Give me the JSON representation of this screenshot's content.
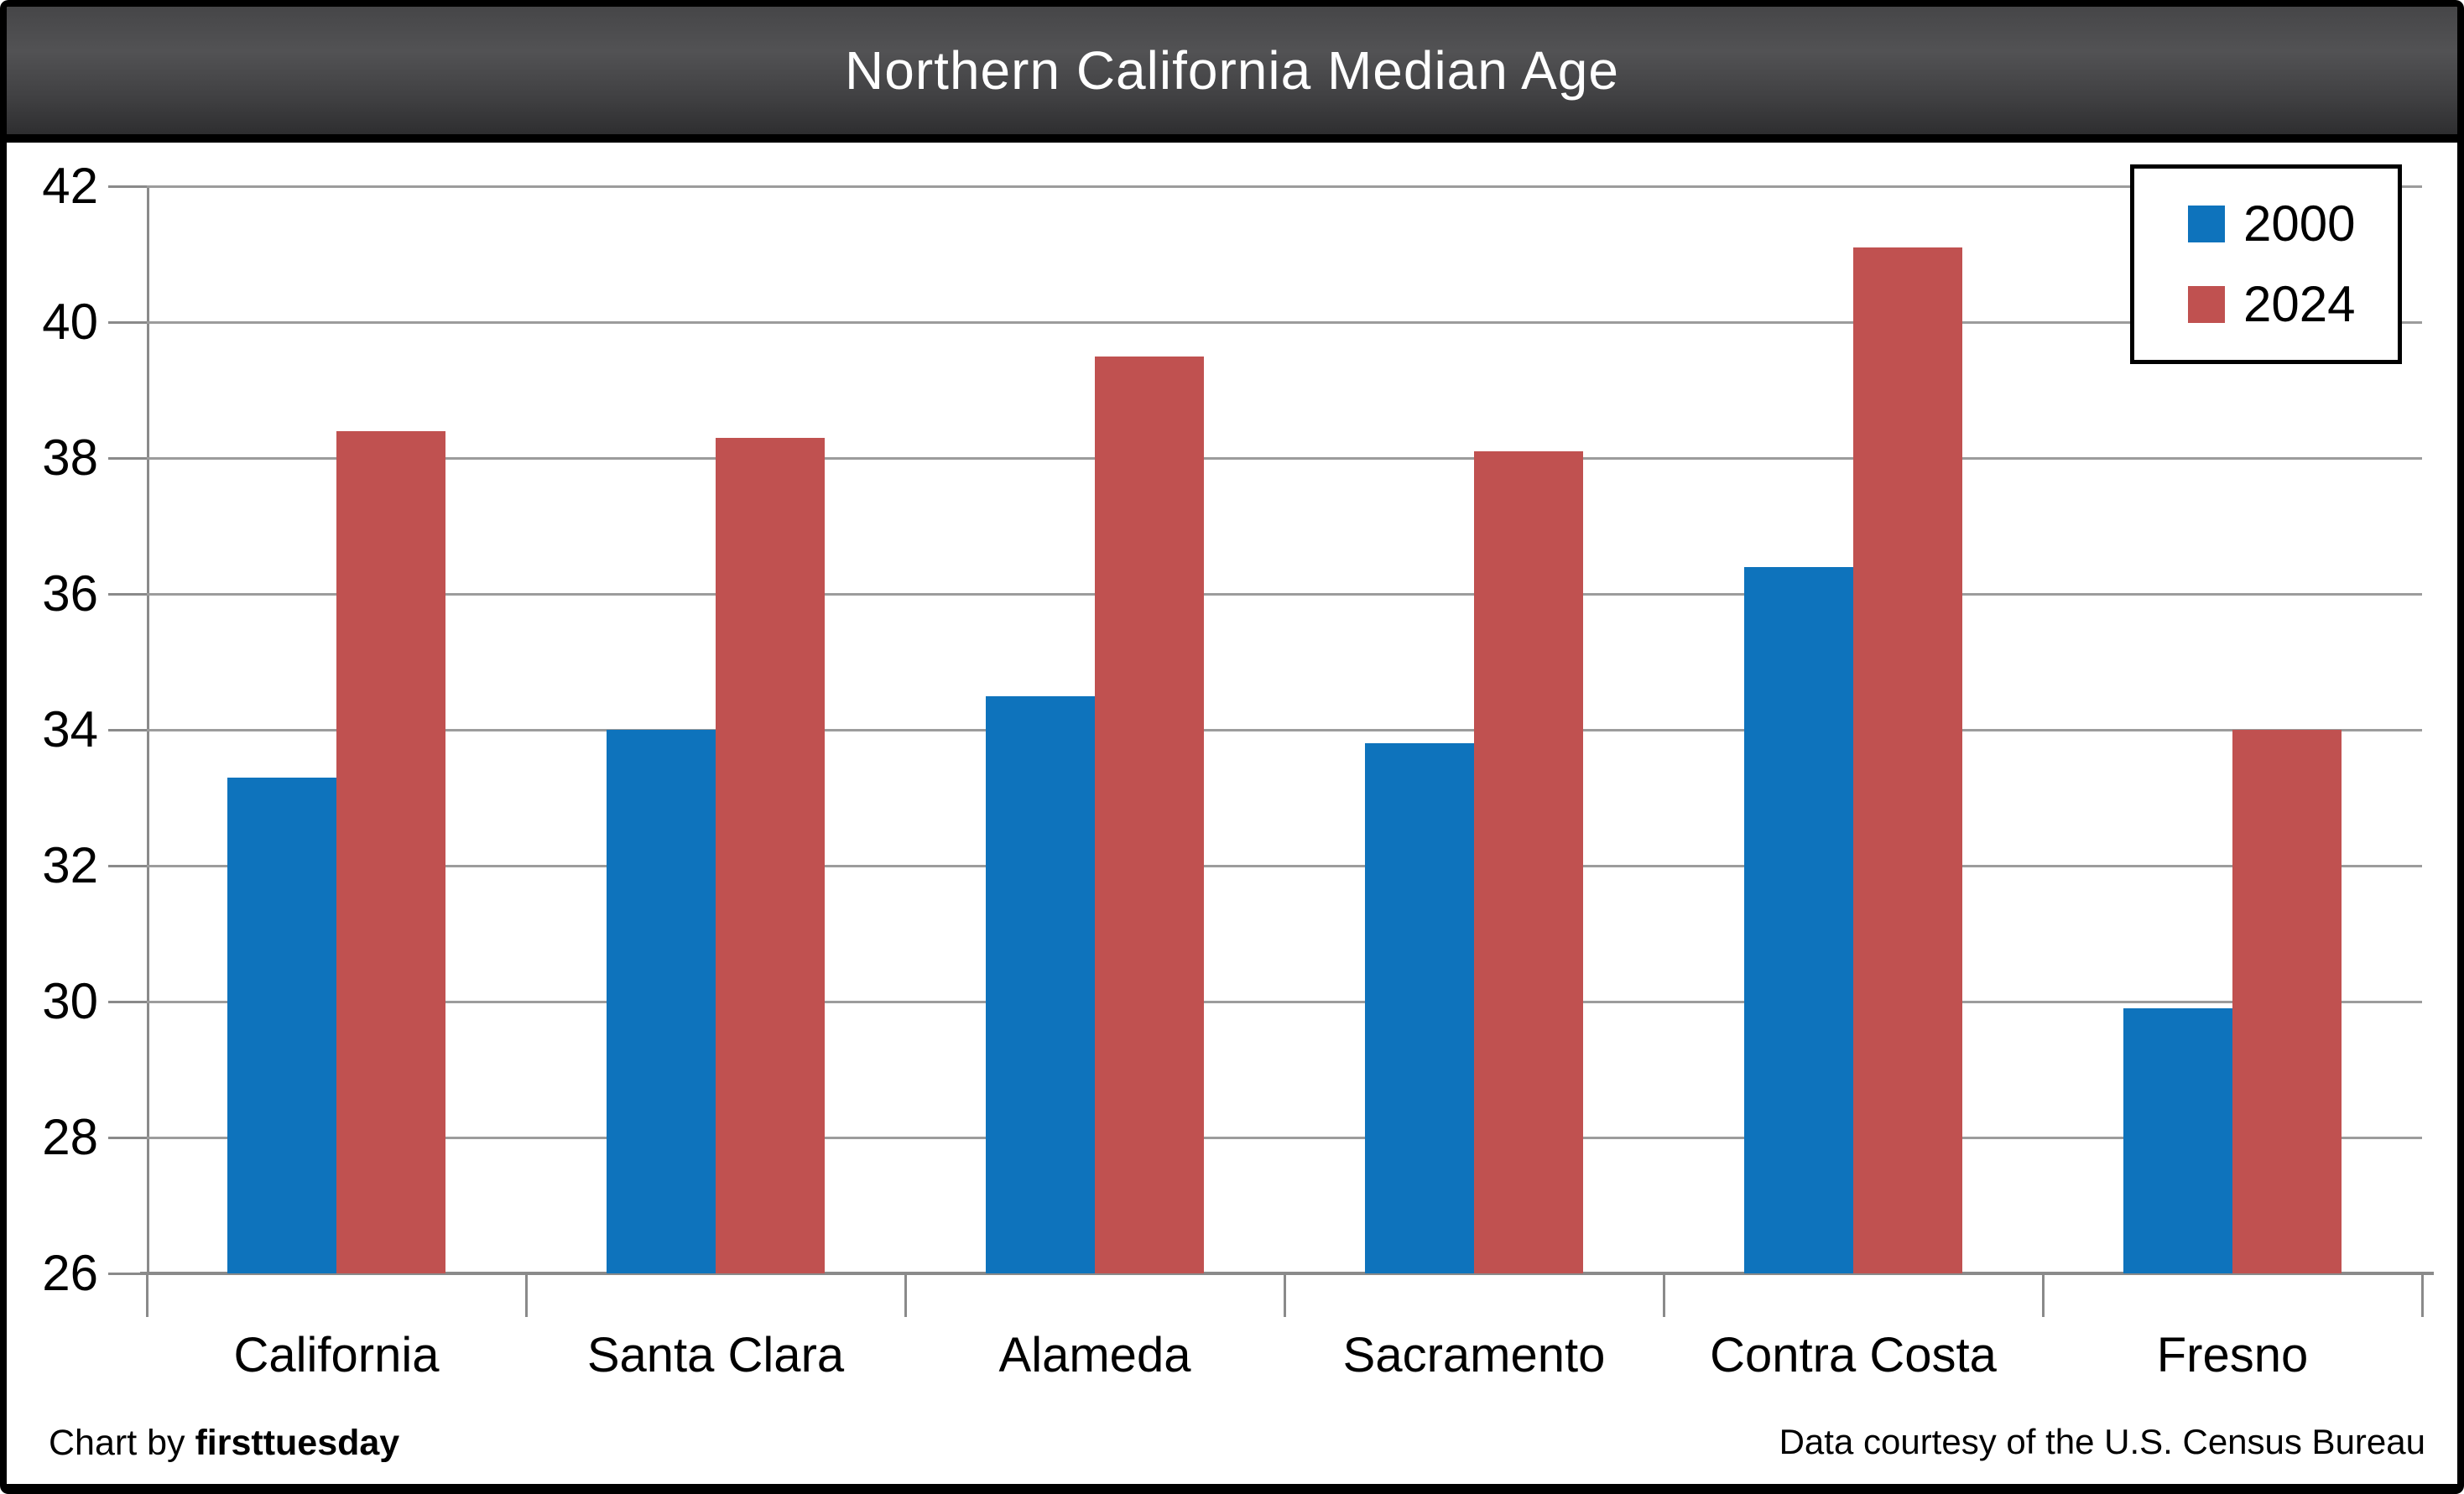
{
  "title": "Northern California Median Age",
  "footer": {
    "credit_prefix": "Chart by ",
    "credit_brand": "firsttuesday",
    "data_source": "Data courtesy of the U.S. Census Bureau"
  },
  "colors": {
    "gridline": "#9c9c9c",
    "axis": "#8a8a8a",
    "title_text": "#ffffff",
    "series_2000": "#0e73bc",
    "series_2024": "#c05150"
  },
  "chart_data": {
    "type": "bar",
    "title": "Northern California Median Age",
    "categories": [
      "California",
      "Santa Clara",
      "Alameda",
      "Sacramento",
      "Contra Costa",
      "Fresno"
    ],
    "series": [
      {
        "name": "2000",
        "color": "#0e73bc",
        "values": [
          33.3,
          34.0,
          34.5,
          33.8,
          36.4,
          29.9
        ]
      },
      {
        "name": "2024",
        "color": "#c05150",
        "values": [
          38.4,
          38.3,
          39.5,
          38.1,
          41.1,
          34.0
        ]
      }
    ],
    "xlabel": "",
    "ylabel": "",
    "ylim": [
      26,
      42
    ],
    "ytick_step": 2,
    "yticks": [
      26,
      28,
      30,
      32,
      34,
      36,
      38,
      40,
      42
    ],
    "grid": true,
    "legend_position": "top-right",
    "legend_entries": [
      "2000",
      "2024"
    ]
  }
}
